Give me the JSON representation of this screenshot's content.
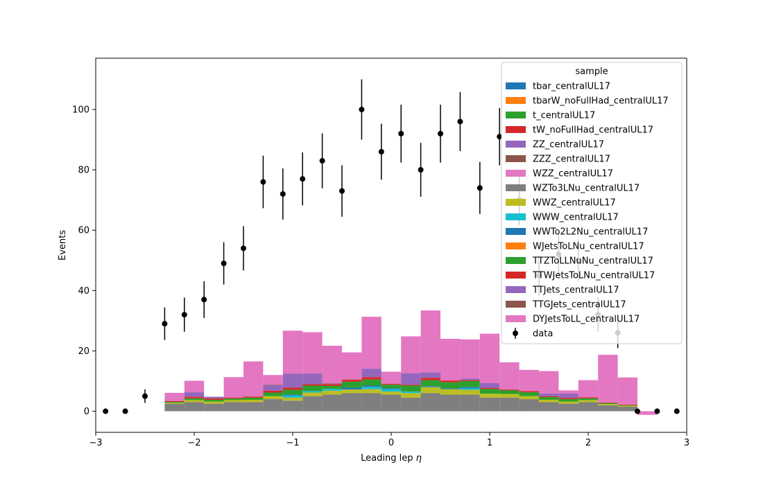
{
  "chart_data": {
    "type": "bar",
    "stacked": true,
    "xlabel_text": "Leading lep ",
    "xlabel_symbol": "η",
    "ylabel": "Events",
    "xlim": [
      -3,
      3
    ],
    "ylim": [
      -7,
      117
    ],
    "xticks": [
      -3,
      -2,
      -1,
      0,
      1,
      2,
      3
    ],
    "yticks": [
      0,
      20,
      40,
      60,
      80,
      100
    ],
    "grid": false,
    "legend_title": "sample",
    "legend_position": "top-right",
    "bin_edges": [
      -2.5,
      -2.3,
      -2.1,
      -1.9,
      -1.7,
      -1.5,
      -1.3,
      -1.1,
      -0.9,
      -0.7,
      -0.5,
      -0.3,
      -0.1,
      0.1,
      0.3,
      0.5,
      0.7,
      0.9,
      1.1,
      1.3,
      1.5,
      1.7,
      1.9,
      2.1,
      2.3,
      2.5,
      2.7
    ],
    "series": [
      {
        "name": "tbar_centralUL17",
        "color": "#1f77b4",
        "values": [
          0,
          0,
          0,
          0,
          0,
          0,
          0,
          0,
          0,
          0,
          0,
          0,
          0,
          0,
          0,
          0,
          0,
          0,
          0,
          0,
          0,
          0,
          0,
          0,
          0,
          0
        ]
      },
      {
        "name": "tbarW_noFullHad_centralUL17",
        "color": "#ff7f0e",
        "values": [
          0,
          0,
          0,
          0,
          0,
          0,
          0,
          0,
          0,
          0,
          0,
          0,
          0,
          0,
          0,
          0,
          0,
          0,
          0,
          0,
          0,
          0,
          0,
          0,
          0,
          0
        ]
      },
      {
        "name": "t_centralUL17",
        "color": "#2ca02c",
        "values": [
          0,
          0,
          0,
          0,
          0,
          0,
          0,
          0,
          0,
          0,
          0,
          0,
          0,
          0,
          0,
          0,
          0,
          0,
          0,
          0,
          0,
          0,
          0,
          0,
          0,
          0
        ]
      },
      {
        "name": "tW_noFullHad_centralUL17",
        "color": "#d62728",
        "values": [
          0,
          0,
          0,
          0,
          0,
          0,
          0,
          0,
          0,
          0,
          0,
          0,
          0,
          0,
          0,
          0,
          0,
          0,
          0,
          0,
          0,
          0,
          0,
          0,
          0,
          0
        ]
      },
      {
        "name": "ZZ_centralUL17",
        "color": "#9467bd",
        "values": [
          0,
          0,
          0,
          0,
          0,
          0,
          0,
          0,
          0,
          0,
          0,
          0,
          0,
          0,
          0,
          0,
          0,
          0,
          0,
          0,
          0,
          0,
          0,
          0,
          0,
          0
        ]
      },
      {
        "name": "ZZZ_centralUL17",
        "color": "#8c564b",
        "values": [
          0,
          0,
          0,
          0,
          0,
          0,
          0,
          0,
          0,
          0,
          0,
          0,
          0,
          0,
          0,
          0,
          0,
          0,
          0,
          0,
          0,
          0,
          0,
          0,
          0,
          0
        ]
      },
      {
        "name": "WZZ_centralUL17",
        "color": "#e377c2",
        "values": [
          0,
          0,
          0,
          0,
          0,
          0,
          0,
          0,
          0,
          0,
          0,
          0,
          0,
          0,
          0,
          0,
          0,
          0,
          0,
          0,
          0,
          0,
          0,
          0,
          0,
          0
        ]
      },
      {
        "name": "WZTo3LNu_centralUL17",
        "color": "#7f7f7f",
        "values": [
          0,
          2.5,
          3,
          2.5,
          3,
          3,
          4,
          3.5,
          5,
          5.5,
          6,
          6,
          5.5,
          4.5,
          6,
          5.5,
          5.5,
          4.5,
          4.5,
          4,
          3,
          2.5,
          3,
          2,
          1.5,
          0
        ]
      },
      {
        "name": "WWZ_centralUL17",
        "color": "#bcbd22",
        "values": [
          0,
          0.3,
          0.7,
          0.7,
          0.7,
          0.8,
          1,
          1,
          1.2,
          1.3,
          1.2,
          1.3,
          1,
          1.5,
          2,
          1.8,
          1.6,
          1.3,
          1.2,
          1,
          0.8,
          0.7,
          0.7,
          0.4,
          0.3,
          0
        ]
      },
      {
        "name": "WWW_centralUL17",
        "color": "#17becf",
        "values": [
          0,
          0,
          0,
          0,
          0,
          0,
          0,
          0.7,
          0.5,
          0.6,
          0,
          0.8,
          0.8,
          0.5,
          0,
          0,
          0.5,
          0,
          0,
          0,
          0,
          0,
          0,
          0,
          0,
          0
        ]
      },
      {
        "name": "WWTo2L2Nu_centralUL17",
        "color": "#1f77b4",
        "values": [
          0,
          0,
          0,
          0,
          0,
          0,
          0,
          0.3,
          0,
          0,
          0.6,
          0.4,
          0.3,
          0,
          0.3,
          0.3,
          0.4,
          0,
          0,
          0,
          0,
          0,
          0,
          0,
          0,
          0
        ]
      },
      {
        "name": "WJetsToLNu_centralUL17",
        "color": "#ff7f0e",
        "values": [
          0,
          0,
          0,
          0,
          0,
          0,
          0,
          0,
          0,
          0,
          0,
          0,
          0,
          0,
          0,
          0,
          0,
          0,
          0,
          0,
          0,
          0,
          0,
          0,
          0,
          0
        ]
      },
      {
        "name": "TTZToLLNuNu_centralUL17",
        "color": "#2ca02c",
        "values": [
          0,
          0.3,
          0.6,
          0.6,
          0.5,
          0.7,
          1.2,
          1.6,
          1.8,
          1,
          2,
          2,
          1.2,
          2,
          2,
          2,
          2,
          1.6,
          1.2,
          1.3,
          0.9,
          0.8,
          0.6,
          0.3,
          0.2,
          0
        ]
      },
      {
        "name": "TTWJetsToLNu_centralUL17",
        "color": "#d62728",
        "values": [
          0,
          0.3,
          0.5,
          0.5,
          0.3,
          0.4,
          0.6,
          0.7,
          0.5,
          0.5,
          0.7,
          0.8,
          0.3,
          0.3,
          0.8,
          0.6,
          0.3,
          0.3,
          0.3,
          0.4,
          0.3,
          0.4,
          0.3,
          0.2,
          0.2,
          0
        ]
      },
      {
        "name": "TTJets_centralUL17",
        "color": "#9467bd",
        "values": [
          0,
          0,
          1.5,
          0.5,
          0,
          0,
          1.8,
          4.6,
          3.5,
          0,
          0,
          2.8,
          0,
          3.8,
          1.8,
          0,
          0.5,
          1.6,
          0,
          0,
          0.9,
          1.5,
          0,
          0,
          0,
          0
        ]
      },
      {
        "name": "TTGJets_centralUL17",
        "color": "#8c564b",
        "values": [
          0,
          0,
          0,
          0,
          0,
          0,
          0.2,
          0,
          0,
          0.3,
          0,
          0,
          0,
          0,
          0,
          0,
          0,
          0,
          0,
          0,
          0,
          0,
          0,
          0,
          0,
          0
        ]
      },
      {
        "name": "DYJetsToLL_centralUL17",
        "color": "#e377c2",
        "values": [
          0,
          2.7,
          3.8,
          0,
          6.8,
          11.6,
          3.2,
          14.3,
          13.7,
          12.5,
          9,
          17.2,
          4,
          12.2,
          20.5,
          13.8,
          13,
          16.4,
          9,
          7,
          7.4,
          1,
          5.7,
          15.8,
          9,
          -1.2
        ]
      }
    ],
    "stack_tops": [
      0,
      6,
      10,
      5.5,
      12.5,
      18,
      14,
      28.3,
      27.5,
      24.5,
      22.5,
      32.8,
      16,
      28,
      35.2,
      26.6,
      25.7,
      28.4,
      18,
      15.7,
      14.8,
      9,
      10.2,
      19.5,
      12,
      -1.2
    ],
    "data": {
      "name": "data",
      "x": [
        -2.9,
        -2.7,
        -2.5,
        -2.3,
        -2.1,
        -1.9,
        -1.7,
        -1.5,
        -1.3,
        -1.1,
        -0.9,
        -0.7,
        -0.5,
        -0.3,
        -0.1,
        0.1,
        0.3,
        0.5,
        0.7,
        0.9,
        1.1,
        1.3,
        1.5,
        1.7,
        1.9,
        2.1,
        2.3,
        2.5,
        2.7,
        2.9
      ],
      "y": [
        0,
        0,
        5,
        29,
        32,
        37,
        49,
        54,
        76,
        72,
        77,
        83,
        73,
        100,
        86,
        92,
        80,
        92,
        96,
        74,
        91,
        70,
        45,
        52,
        50,
        32,
        26,
        0,
        0,
        0
      ]
    }
  }
}
